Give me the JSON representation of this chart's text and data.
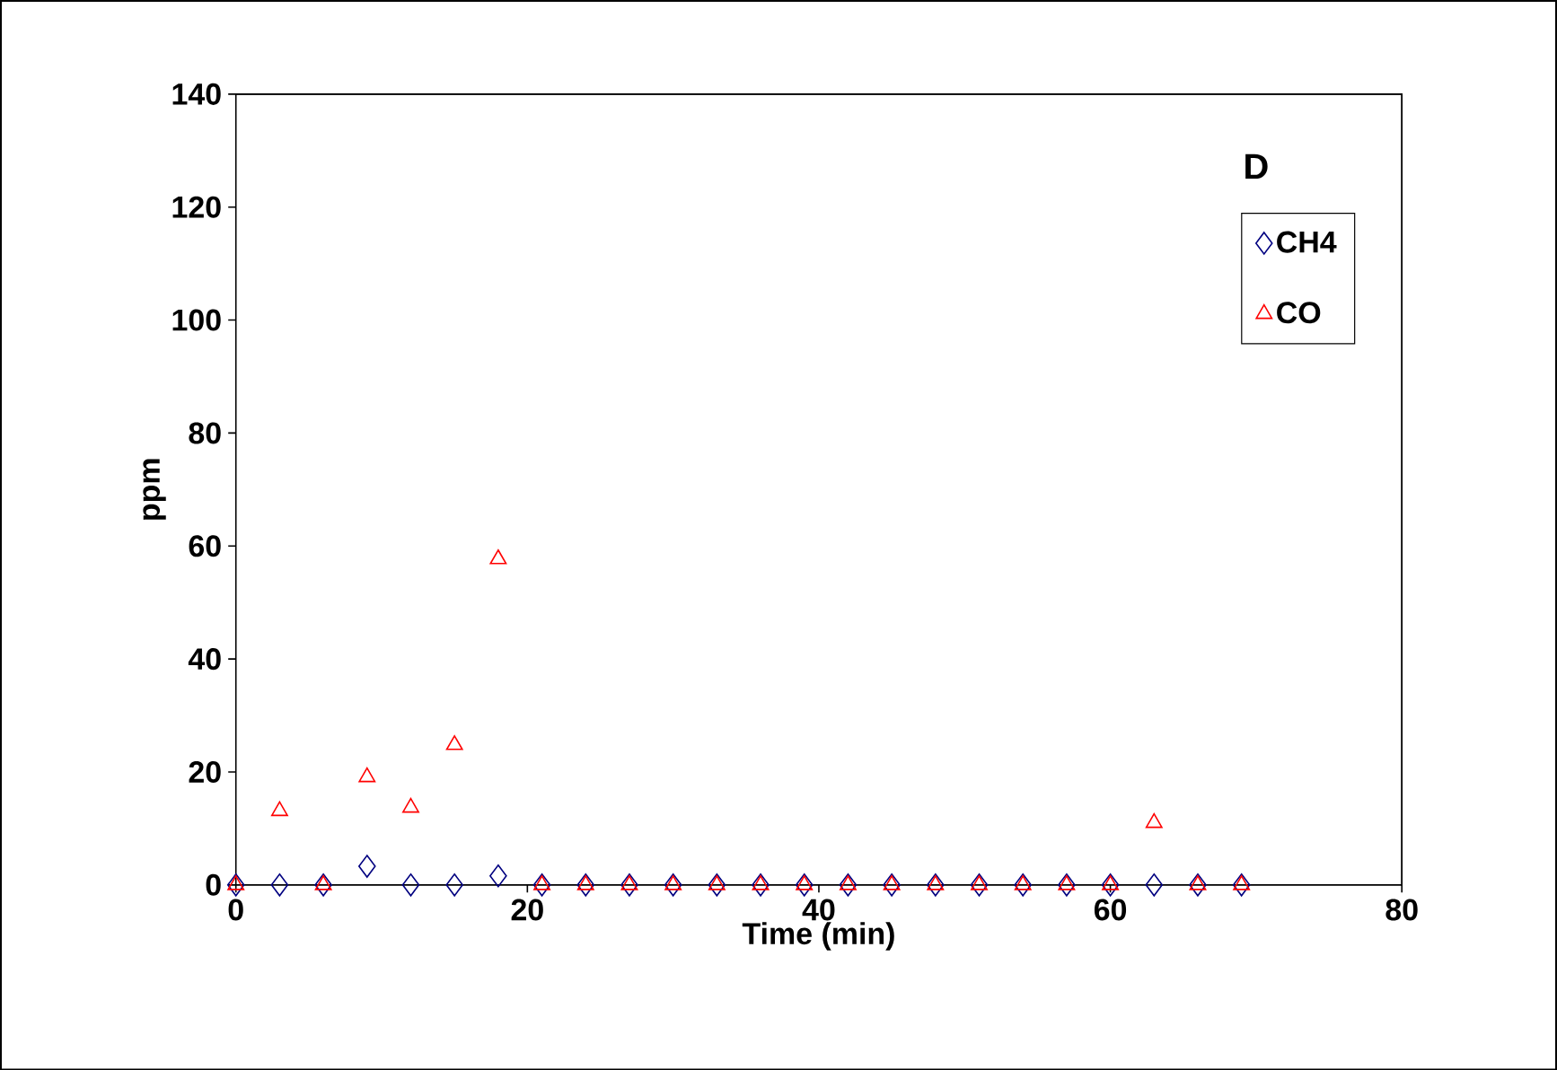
{
  "chart_data": {
    "type": "scatter",
    "xlabel": "Time (min)",
    "ylabel": "ppm",
    "annotations": [
      "D"
    ],
    "x": [
      0,
      3,
      6,
      9,
      12,
      15,
      18,
      21,
      24,
      27,
      30,
      33,
      36,
      39,
      42,
      45,
      48,
      51,
      54,
      57,
      60,
      63,
      66,
      69
    ],
    "series": [
      {
        "name": "CH4",
        "color": "#000080",
        "marker": "diamond",
        "values": [
          0,
          0,
          0,
          3.3,
          0,
          0,
          1.6,
          0,
          0,
          0,
          0,
          0,
          0,
          0,
          0,
          0,
          0,
          0,
          0,
          0,
          0,
          0,
          0,
          0
        ]
      },
      {
        "name": "CO",
        "color": "#ff0000",
        "marker": "triangle",
        "values": [
          0,
          13.1,
          0,
          19.1,
          13.7,
          24.8,
          57.7,
          0,
          0,
          0,
          0,
          0,
          0,
          0,
          0,
          0,
          0,
          0,
          0,
          0,
          0,
          11.0,
          0,
          0
        ]
      }
    ],
    "xlim": [
      0,
      80
    ],
    "ylim": [
      0,
      140
    ],
    "xticks": [
      0,
      20,
      40,
      60,
      80
    ],
    "yticks": [
      0,
      20,
      40,
      60,
      80,
      100,
      120,
      140
    ],
    "legend": "top right",
    "grid": false
  }
}
